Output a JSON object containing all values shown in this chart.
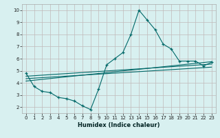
{
  "xlabel": "Humidex (Indice chaleur)",
  "bg_color": "#d8f0f0",
  "grid_color": "#c0b8b8",
  "line_color": "#006868",
  "xlim": [
    -0.5,
    23.5
  ],
  "ylim": [
    1.5,
    10.5
  ],
  "xticks": [
    0,
    1,
    2,
    3,
    4,
    5,
    6,
    7,
    8,
    9,
    10,
    11,
    12,
    13,
    14,
    15,
    16,
    17,
    18,
    19,
    20,
    21,
    22,
    23
  ],
  "yticks": [
    2,
    3,
    4,
    5,
    6,
    7,
    8,
    9,
    10
  ],
  "main_x": [
    0,
    1,
    2,
    3,
    4,
    5,
    6,
    7,
    8,
    9,
    10,
    11,
    12,
    13,
    14,
    15,
    16,
    17,
    18,
    19,
    20,
    21,
    22,
    23
  ],
  "main_y": [
    4.8,
    3.7,
    3.3,
    3.2,
    2.8,
    2.7,
    2.5,
    2.1,
    1.8,
    3.5,
    5.5,
    6.0,
    6.5,
    8.0,
    10.0,
    9.2,
    8.4,
    7.2,
    6.8,
    5.8,
    5.8,
    5.8,
    5.4,
    5.7
  ],
  "line1_x": [
    0,
    23
  ],
  "line1_y": [
    4.55,
    5.55
  ],
  "line2_x": [
    0,
    23
  ],
  "line2_y": [
    4.35,
    5.3
  ],
  "line3_x": [
    0,
    23
  ],
  "line3_y": [
    4.15,
    5.75
  ]
}
